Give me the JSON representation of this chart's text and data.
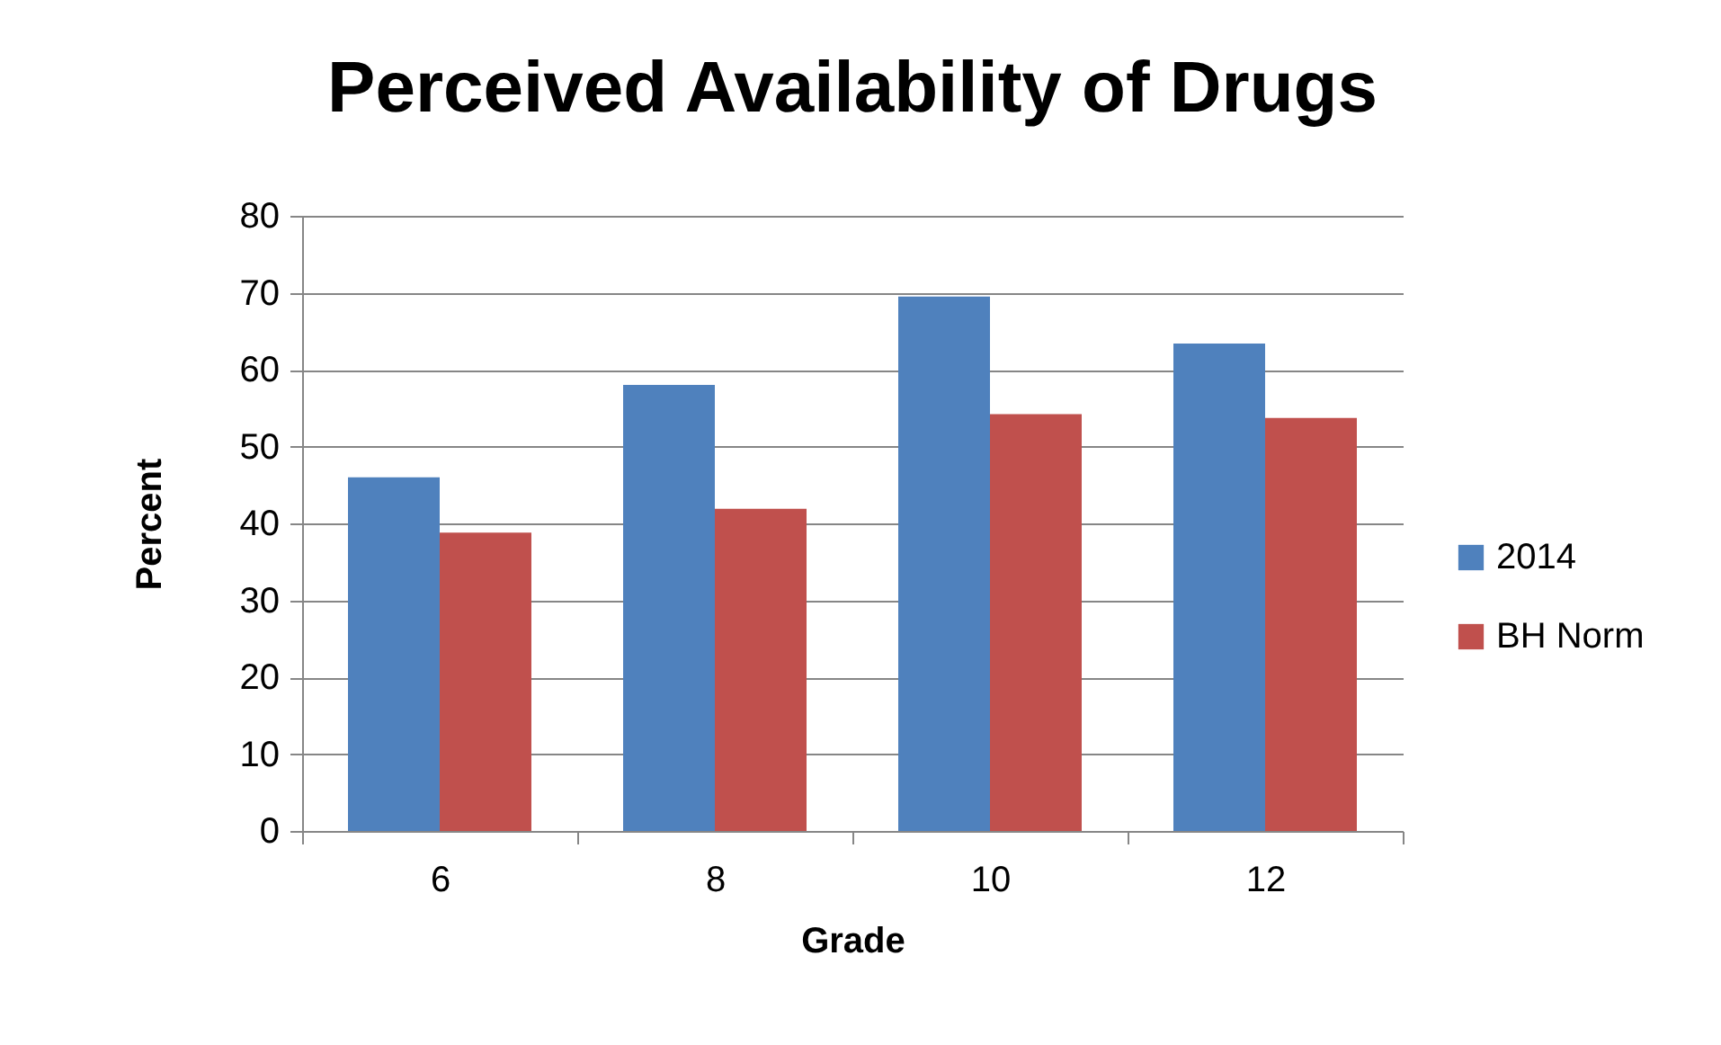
{
  "chart_data": {
    "type": "bar",
    "title": "Perceived Availability of Drugs",
    "xlabel": "Grade",
    "ylabel": "Percent",
    "categories": [
      "6",
      "8",
      "10",
      "12"
    ],
    "series": [
      {
        "name": "2014",
        "color": "#4f81bd",
        "values": [
          46,
          58,
          69.5,
          63.4
        ]
      },
      {
        "name": "BH Norm",
        "color": "#c0504d",
        "values": [
          38.8,
          41.9,
          54.2,
          53.7
        ]
      }
    ],
    "ylim": [
      0,
      80
    ],
    "yticks": [
      0,
      10,
      20,
      30,
      40,
      50,
      60,
      70,
      80
    ],
    "grid": "y",
    "legend": "right"
  }
}
